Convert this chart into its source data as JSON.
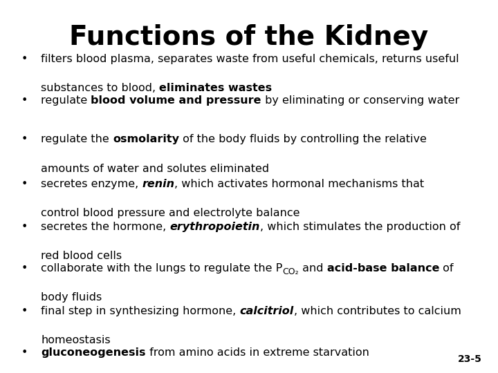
{
  "title": "Functions of the Kidney",
  "background_color": "#ffffff",
  "text_color": "#000000",
  "slide_label": "23-5",
  "title_fontsize": 28,
  "body_fontsize": 11.5,
  "bullet_char": "•",
  "bullets": [
    {
      "line1": [
        {
          "text": "filters blood plasma, separates waste from useful chemicals, returns useful",
          "style": "normal"
        }
      ],
      "line2": [
        {
          "text": "substances to blood, ",
          "style": "normal"
        },
        {
          "text": "eliminates wastes",
          "style": "bold"
        }
      ]
    },
    {
      "line1": [
        {
          "text": "regulate ",
          "style": "normal"
        },
        {
          "text": "blood volume and pressure",
          "style": "bold"
        },
        {
          "text": " by eliminating or conserving water",
          "style": "normal"
        }
      ],
      "line2": null
    },
    {
      "line1": [
        {
          "text": "regulate the ",
          "style": "normal"
        },
        {
          "text": "osmolarity",
          "style": "bold"
        },
        {
          "text": " of the body fluids by controlling the relative",
          "style": "normal"
        }
      ],
      "line2": [
        {
          "text": "amounts of water and solutes eliminated",
          "style": "normal"
        }
      ]
    },
    {
      "line1": [
        {
          "text": "secretes enzyme, ",
          "style": "normal"
        },
        {
          "text": "renin",
          "style": "bolditalic"
        },
        {
          "text": ", which activates hormonal mechanisms that",
          "style": "normal"
        }
      ],
      "line2": [
        {
          "text": "control blood pressure and electrolyte balance",
          "style": "normal"
        }
      ]
    },
    {
      "line1": [
        {
          "text": "secretes the hormone, ",
          "style": "normal"
        },
        {
          "text": "erythropoietin",
          "style": "bolditalic"
        },
        {
          "text": ", which stimulates the production of",
          "style": "normal"
        }
      ],
      "line2": [
        {
          "text": "red blood cells",
          "style": "normal"
        }
      ]
    },
    {
      "line1": [
        {
          "text": "collaborate with the lungs to regulate the P",
          "style": "normal"
        },
        {
          "text": "CO₂",
          "style": "subscript"
        },
        {
          "text": " and ",
          "style": "normal"
        },
        {
          "text": "acid-base balance",
          "style": "bold"
        },
        {
          "text": " of",
          "style": "normal"
        }
      ],
      "line2": [
        {
          "text": "body fluids",
          "style": "normal"
        }
      ]
    },
    {
      "line1": [
        {
          "text": "final step in synthesizing hormone, ",
          "style": "normal"
        },
        {
          "text": "calcitriol",
          "style": "bolditalic"
        },
        {
          "text": ", which contributes to calcium",
          "style": "normal"
        }
      ],
      "line2": [
        {
          "text": "homeostasis",
          "style": "normal"
        }
      ]
    },
    {
      "line1": [
        {
          "text": "gluconeogenesis",
          "style": "bold"
        },
        {
          "text": " from amino acids in extreme starvation",
          "style": "normal"
        }
      ],
      "line2": null
    }
  ]
}
